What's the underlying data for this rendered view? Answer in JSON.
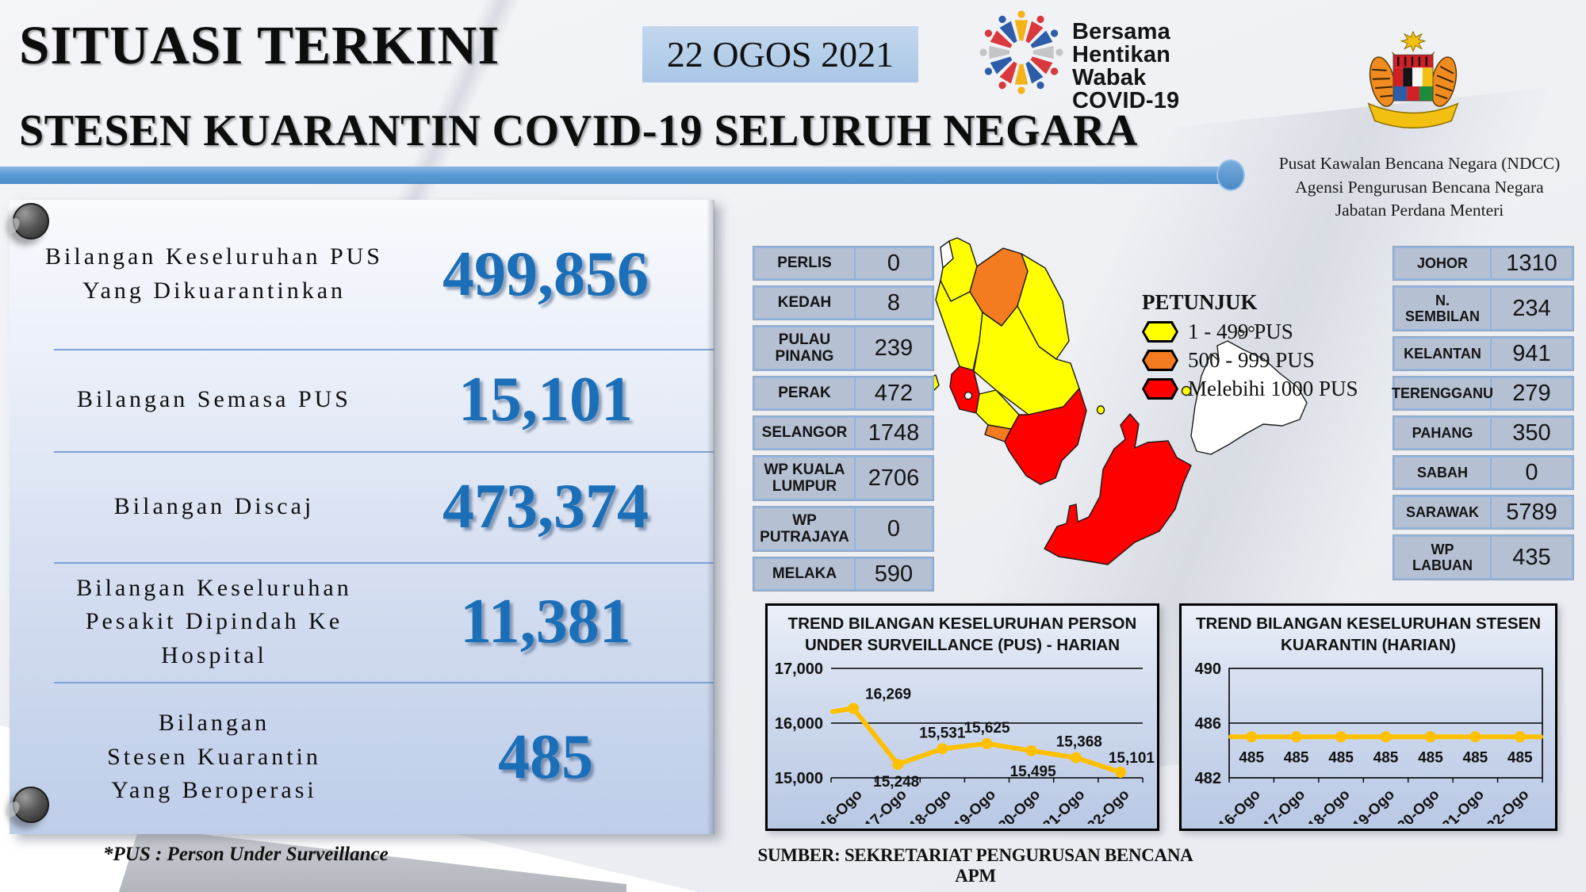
{
  "page": {
    "title": "SITUASI TERKINI",
    "date": "22 OGOS 2021",
    "subtitle": "STESEN KUARANTIN COVID-19 SELURUH NEGARA"
  },
  "campaign": {
    "lines": "Bersama\nHentikan\nWabak\nCOVID-19"
  },
  "org": {
    "lines": "Pusat Kawalan Bencana Negara (NDCC)\nAgensi Pengurusan Bencana Negara\nJabatan Perdana Menteri"
  },
  "stats": [
    {
      "label": "Bilangan Keseluruhan PUS Yang Dikuarantinkan",
      "value": "499,856"
    },
    {
      "label": "Bilangan Semasa PUS",
      "value": "15,101"
    },
    {
      "label": "Bilangan Discaj",
      "value": "473,374"
    },
    {
      "label": "Bilangan Keseluruhan Pesakit Dipindah Ke Hospital",
      "value": "11,381"
    },
    {
      "label": "Bilangan\nStesen Kuarantin\nYang Beroperasi",
      "value": "485"
    }
  ],
  "state_table_left": [
    [
      "PERLIS",
      "0"
    ],
    [
      "KEDAH",
      "8"
    ],
    [
      "PULAU\nPINANG",
      "239"
    ],
    [
      "PERAK",
      "472"
    ],
    [
      "SELANGOR",
      "1748"
    ],
    [
      "WP KUALA\nLUMPUR",
      "2706"
    ],
    [
      "WP\nPUTRAJAYA",
      "0"
    ],
    [
      "MELAKA",
      "590"
    ]
  ],
  "state_table_right": [
    [
      "JOHOR",
      "1310"
    ],
    [
      "N.\nSEMBILAN",
      "234"
    ],
    [
      "KELANTAN",
      "941"
    ],
    [
      "TERENGGANU",
      "279"
    ],
    [
      "PAHANG",
      "350"
    ],
    [
      "SABAH",
      "0"
    ],
    [
      "SARAWAK",
      "5789"
    ],
    [
      "WP\nLABUAN",
      "435"
    ]
  ],
  "legend": {
    "title": "PETUNJUK",
    "items": [
      {
        "label": "1 - 499 PUS",
        "color": "#FFFF00"
      },
      {
        "label": "500 - 999 PUS",
        "color": "#F47B20"
      },
      {
        "label": "Melebihi 1000 PUS",
        "color": "#FF0000"
      }
    ]
  },
  "map_colors": {
    "yellow": "#FFFF00",
    "orange": "#F47B20",
    "red": "#FF0000",
    "none": "#FFFFFF"
  },
  "chart_data": [
    {
      "type": "line",
      "title": "TREND BILANGAN KESELURUHAN PERSON UNDER SURVEILLANCE (PUS) - HARIAN",
      "categories": [
        "16-Ogo",
        "17-Ogo",
        "18-Ogo",
        "19-Ogo",
        "20-Ogo",
        "21-Ogo",
        "22-Ogo"
      ],
      "values": [
        16269,
        15248,
        15531,
        15625,
        15495,
        15368,
        15101
      ],
      "data_labels": [
        "16,269",
        "15,248",
        "15,531",
        "15,625",
        "15,495",
        "15,368",
        "15,101"
      ],
      "ylim": [
        15000,
        17000
      ],
      "yticks": [
        15000,
        16000,
        17000
      ],
      "ytick_labels": [
        "15,000",
        "16,000",
        "17,000"
      ],
      "line_color": "#FFC000",
      "grid": true,
      "legend_position": "none"
    },
    {
      "type": "line",
      "title": "TREND BILANGAN KESELURUHAN STESEN KUARANTIN (HARIAN)",
      "categories": [
        "16-Ogo",
        "17-Ogo",
        "18-Ogo",
        "19-Ogo",
        "20-Ogo",
        "21-Ogo",
        "22-Ogo"
      ],
      "values": [
        485,
        485,
        485,
        485,
        485,
        485,
        485
      ],
      "data_labels": [
        "485",
        "485",
        "485",
        "485",
        "485",
        "485",
        "485"
      ],
      "ylim": [
        482,
        490
      ],
      "yticks": [
        482,
        486,
        490
      ],
      "ytick_labels": [
        "482",
        "486",
        "490"
      ],
      "line_color": "#FFC000",
      "grid": true,
      "legend_position": "none"
    }
  ],
  "footer": {
    "note": "*PUS : Person Under Surveillance",
    "source": "SUMBER: SEKRETARIAT PENGURUSAN BENCANA APM"
  }
}
